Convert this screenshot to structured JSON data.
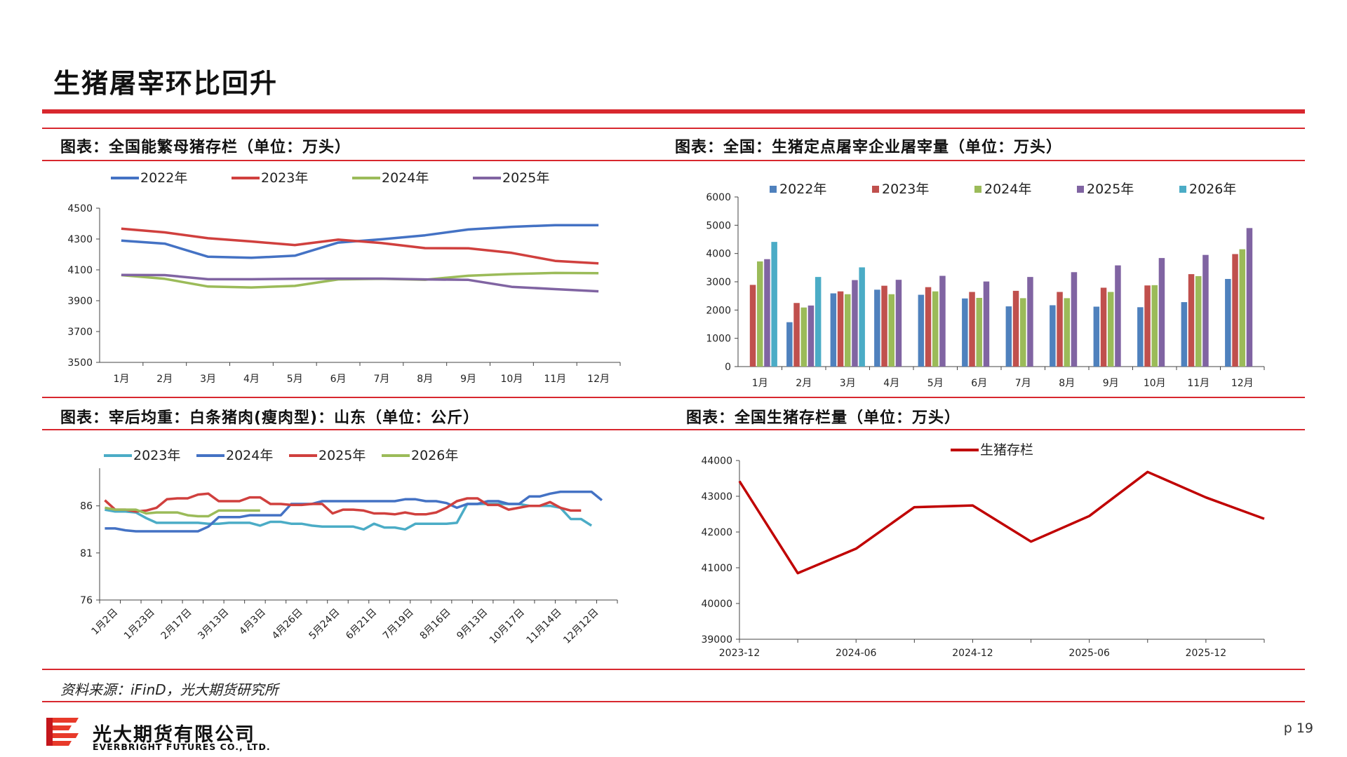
{
  "page": {
    "title": "生猪屠宰环比回升",
    "source": "资料来源：iFinD，光大期货研究所",
    "company_cn": "光大期货有限公司",
    "company_en": "EVERBRIGHT FUTURES CO., LTD.",
    "page_number": "p 19",
    "accent_color": "#d8272e"
  },
  "panels": {
    "p1_title": "图表：全国能繁母猪存栏（单位：万头）",
    "p2_title": "图表：全国：生猪定点屠宰企业屠宰量（单位：万头）",
    "p3_title": "图表：宰后均重：白条猪肉(瘦肉型)：山东（单位：公斤）",
    "p4_title": "图表：全国生猪存栏量（单位：万头）"
  },
  "chart_data": [
    {
      "id": "sows",
      "type": "line",
      "categories": [
        "1月",
        "2月",
        "3月",
        "4月",
        "5月",
        "6月",
        "7月",
        "8月",
        "9月",
        "10月",
        "11月",
        "12月"
      ],
      "ylim": [
        3500,
        4500
      ],
      "yticks": [
        3500,
        3700,
        3900,
        4100,
        4300,
        4500
      ],
      "legend": "top",
      "series": [
        {
          "name": "2022年",
          "color": "#4472c4",
          "values": [
            4290,
            4270,
            4185,
            4178,
            4192,
            4277,
            4298,
            4324,
            4362,
            4379,
            4390,
            4390
          ]
        },
        {
          "name": "2023年",
          "color": "#d0403e",
          "values": [
            4367,
            4343,
            4305,
            4284,
            4261,
            4296,
            4274,
            4241,
            4240,
            4210,
            4158,
            4142
          ]
        },
        {
          "name": "2024年",
          "color": "#9bbb59",
          "values": [
            4066,
            4042,
            3992,
            3986,
            3996,
            4038,
            4042,
            4036,
            4062,
            4073,
            4080,
            4078
          ]
        },
        {
          "name": "2025年",
          "color": "#8064a2",
          "values": [
            4067,
            4066,
            4039,
            4039,
            4042,
            4043,
            4043,
            4038,
            4035,
            3990,
            3975,
            3961
          ]
        }
      ]
    },
    {
      "id": "slaughter",
      "type": "bar",
      "categories": [
        "1月",
        "2月",
        "3月",
        "4月",
        "5月",
        "6月",
        "7月",
        "8月",
        "9月",
        "10月",
        "11月",
        "12月"
      ],
      "ylim": [
        0,
        6000
      ],
      "yticks": [
        0,
        1000,
        2000,
        3000,
        4000,
        5000,
        6000
      ],
      "legend": "top",
      "series": [
        {
          "name": "2022年",
          "color": "#4f81bd",
          "values": [
            null,
            1570,
            2590,
            2720,
            2540,
            2410,
            2130,
            2170,
            2120,
            2100,
            2280,
            3100
          ]
        },
        {
          "name": "2023年",
          "color": "#c0504d",
          "values": [
            2890,
            2250,
            2660,
            2860,
            2810,
            2640,
            2680,
            2640,
            2790,
            2870,
            3270,
            3980
          ]
        },
        {
          "name": "2024年",
          "color": "#9bbb59",
          "values": [
            3720,
            2090,
            2560,
            2560,
            2660,
            2430,
            2420,
            2420,
            2640,
            2880,
            3200,
            4150
          ]
        },
        {
          "name": "2025年",
          "color": "#8064a2",
          "values": [
            3800,
            2160,
            3060,
            3070,
            3210,
            3010,
            3170,
            3340,
            3580,
            3840,
            3950,
            4900
          ]
        },
        {
          "name": "2026年",
          "color": "#4bacc6",
          "values": [
            4410,
            3170,
            3510,
            null,
            null,
            null,
            null,
            null,
            null,
            null,
            null,
            null
          ]
        }
      ]
    },
    {
      "id": "weight",
      "type": "line",
      "ylim": [
        76,
        90
      ],
      "yticks": [
        76,
        81,
        86
      ],
      "x_ticks": [
        "1月2日",
        "1月23日",
        "2月17日",
        "3月13日",
        "4月3日",
        "4月26日",
        "5月24日",
        "6月21日",
        "7月19日",
        "8月16日",
        "9月13日",
        "10月17日",
        "11月14日",
        "12月12日"
      ],
      "legend": "top",
      "n_points": 50,
      "series": [
        {
          "name": "2023年",
          "color": "#4bacc6",
          "values": [
            85.6,
            85.4,
            85.4,
            85.3,
            84.7,
            84.2,
            84.2,
            84.2,
            84.2,
            84.2,
            84.1,
            84.1,
            84.2,
            84.2,
            84.2,
            83.9,
            84.3,
            84.3,
            84.1,
            84.1,
            83.9,
            83.8,
            83.8,
            83.8,
            83.8,
            83.5,
            84.1,
            83.7,
            83.7,
            83.5,
            84.1,
            84.1,
            84.1,
            84.1,
            84.2,
            86.2,
            86.2,
            86.2,
            86.2,
            86.2,
            86.2,
            86.0,
            86.0,
            86.0,
            85.8,
            84.6,
            84.6,
            83.9
          ]
        },
        {
          "name": "2024年",
          "color": "#4472c4",
          "values": [
            83.6,
            83.6,
            83.4,
            83.3,
            83.3,
            83.3,
            83.3,
            83.3,
            83.3,
            83.3,
            83.8,
            84.8,
            84.8,
            84.8,
            85.0,
            85.0,
            85.0,
            85.0,
            86.2,
            86.2,
            86.2,
            86.5,
            86.5,
            86.5,
            86.5,
            86.5,
            86.5,
            86.5,
            86.5,
            86.7,
            86.7,
            86.5,
            86.5,
            86.3,
            85.8,
            86.2,
            86.2,
            86.5,
            86.5,
            86.2,
            86.2,
            87.0,
            87.0,
            87.3,
            87.5,
            87.5,
            87.5,
            87.5,
            86.6
          ]
        },
        {
          "name": "2025年",
          "color": "#d0403e",
          "values": [
            86.6,
            85.6,
            85.6,
            85.4,
            85.5,
            85.8,
            86.7,
            86.8,
            86.8,
            87.2,
            87.3,
            86.5,
            86.5,
            86.5,
            86.9,
            86.9,
            86.2,
            86.2,
            86.1,
            86.1,
            86.2,
            86.2,
            85.2,
            85.6,
            85.6,
            85.5,
            85.2,
            85.2,
            85.1,
            85.3,
            85.1,
            85.1,
            85.3,
            85.8,
            86.5,
            86.8,
            86.8,
            86.1,
            86.1,
            85.6,
            85.8,
            86.0,
            86.0,
            86.4,
            85.8,
            85.5,
            85.5
          ]
        },
        {
          "name": "2026年",
          "color": "#9bbb59",
          "values": [
            85.8,
            85.6,
            85.6,
            85.6,
            85.2,
            85.3,
            85.3,
            85.3,
            85.0,
            84.9,
            84.9,
            85.5,
            85.5,
            85.5,
            85.5,
            85.5
          ]
        }
      ]
    },
    {
      "id": "inventory",
      "type": "line",
      "ylim": [
        39000,
        44000
      ],
      "yticks": [
        39000,
        40000,
        41000,
        42000,
        43000,
        44000
      ],
      "x_ticks": [
        "2023-12",
        "2024-06",
        "2024-12",
        "2025-06",
        "2025-12"
      ],
      "x": [
        "2023-12",
        "2024-03",
        "2024-06",
        "2024-09",
        "2024-12",
        "2025-03",
        "2025-06",
        "2025-09",
        "2025-12",
        "2026-03"
      ],
      "legend": "top",
      "series": [
        {
          "name": "生猪存栏",
          "color": "#c00000",
          "values": [
            43422,
            40850,
            41533,
            42694,
            42743,
            41731,
            42447,
            43680,
            42967,
            42370
          ]
        }
      ]
    }
  ]
}
